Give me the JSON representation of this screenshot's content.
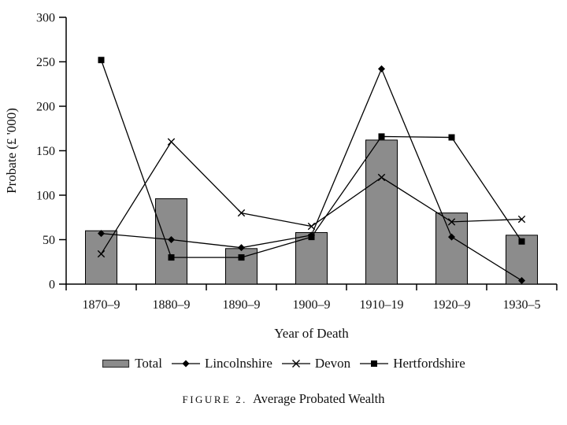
{
  "figure": {
    "caption_label": "FIGURE 2.",
    "caption_title": "Average Probated Wealth"
  },
  "chart_data": {
    "type": "bar+line",
    "title": "Average Probated Wealth",
    "xlabel": "Year of Death",
    "ylabel": "Probate (£ '000)",
    "ylim": [
      0,
      300
    ],
    "y_ticks": [
      0,
      50,
      100,
      150,
      200,
      250,
      300
    ],
    "grid": false,
    "legend_position": "bottom",
    "categories": [
      "1870–9",
      "1880–9",
      "1890–9",
      "1900–9",
      "1910–19",
      "1920–9",
      "1930–5"
    ],
    "colors": {
      "bar_fill": "#8c8c8c",
      "line": "#000000",
      "axis": "#000000",
      "background": "#ffffff"
    },
    "series": [
      {
        "name": "Total",
        "type": "bar",
        "marker": "bar-swatch",
        "color": "#8c8c8c",
        "values": [
          60,
          96,
          40,
          58,
          162,
          80,
          55
        ]
      },
      {
        "name": "Lincolnshire",
        "type": "line",
        "marker": "diamond",
        "color": "#000000",
        "values": [
          57,
          50,
          41,
          55,
          242,
          53,
          4
        ]
      },
      {
        "name": "Devon",
        "type": "line",
        "marker": "x",
        "color": "#000000",
        "values": [
          34,
          160,
          80,
          65,
          120,
          70,
          73
        ]
      },
      {
        "name": "Hertfordshire",
        "type": "line",
        "marker": "square",
        "color": "#000000",
        "values": [
          252,
          30,
          30,
          53,
          166,
          165,
          48
        ]
      }
    ]
  }
}
